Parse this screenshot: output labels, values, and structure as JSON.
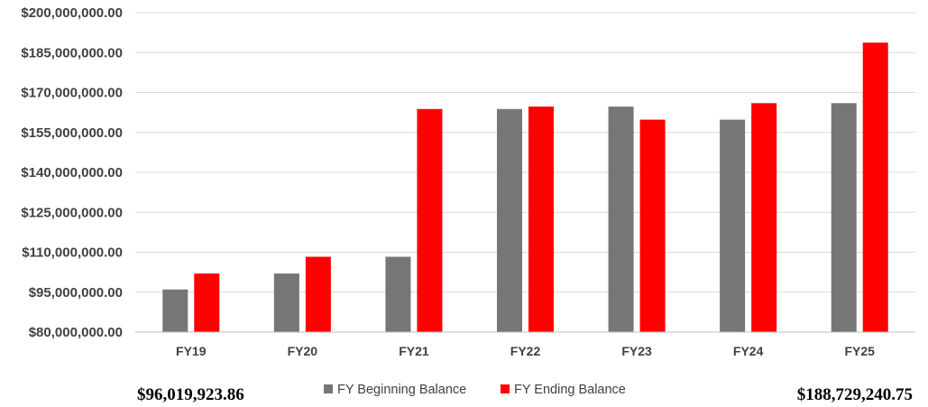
{
  "chart_data": {
    "type": "bar",
    "categories": [
      "FY19",
      "FY20",
      "FY21",
      "FY22",
      "FY23",
      "FY24",
      "FY25"
    ],
    "series": [
      {
        "name": "FY Beginning Balance",
        "color": "#767676",
        "values": [
          96019923.86,
          102000000,
          108300000,
          163800000,
          164700000,
          159800000,
          166000000
        ]
      },
      {
        "name": "FY Ending Balance",
        "color": "#ff0000",
        "values": [
          102000000,
          108300000,
          163800000,
          164700000,
          159800000,
          166000000,
          188729240.75
        ]
      }
    ],
    "ylim": [
      80000000,
      200000000
    ],
    "yticks": [
      "$80,000,000.00",
      "$95,000,000.00",
      "$110,000,000.00",
      "$125,000,000.00",
      "$140,000,000.00",
      "$155,000,000.00",
      "$170,000,000.00",
      "$185,000,000.00",
      "$200,000,000.00"
    ],
    "ytick_values": [
      80000000,
      95000000,
      110000000,
      125000000,
      140000000,
      155000000,
      170000000,
      185000000,
      200000000
    ],
    "grid": true,
    "legend_position": "bottom-center",
    "annotations": {
      "left": "$96,019,923.86",
      "right": "$188,729,240.75"
    }
  }
}
